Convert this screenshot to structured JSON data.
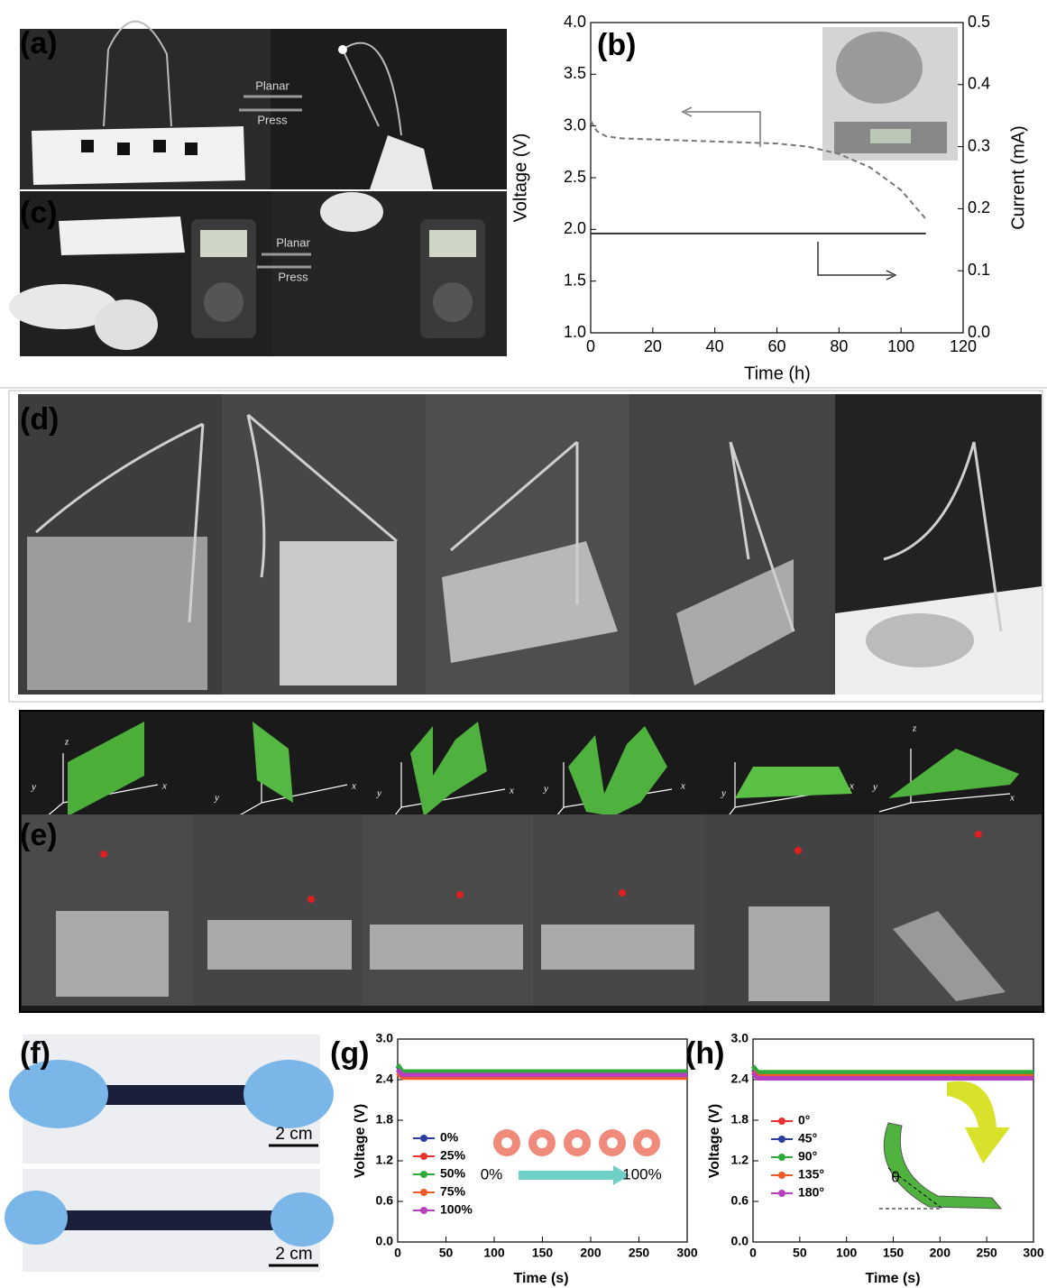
{
  "figure": {
    "labels": [
      "(a)",
      "(b)",
      "(c)",
      "(d)",
      "(e)",
      "(f)",
      "(g)",
      "(h)"
    ],
    "photo_texts": {
      "a_planar": "Planar",
      "a_press": "Press",
      "c_planar": "Planar",
      "c_press": "Press",
      "f_scale_top": "2 cm",
      "f_scale_bottom": "2 cm"
    },
    "axes_3d": [
      "z",
      "y",
      "x",
      "y",
      "x",
      "y",
      "x",
      "y",
      "x",
      "y",
      "x",
      "z",
      "y",
      "x"
    ]
  },
  "chart_data": [
    {
      "type": "line",
      "x_label": "Time (h)",
      "y_label": "Voltage (V)",
      "y2_label": "Current (mA)",
      "xlim": [
        0,
        120
      ],
      "xticks": [
        0,
        20,
        40,
        60,
        80,
        100,
        120
      ],
      "ylim": [
        1.0,
        4.0
      ],
      "yticks": [
        {
          "value": 1.0,
          "label": "1.0"
        },
        {
          "value": 1.5,
          "label": "1.5"
        },
        {
          "value": 2.0,
          "label": "2.0"
        },
        {
          "value": 2.5,
          "label": "2.5"
        },
        {
          "value": 3.0,
          "label": "3.0"
        },
        {
          "value": 3.5,
          "label": "3.5"
        },
        {
          "value": 4.0,
          "label": "4.0"
        }
      ],
      "y2lim": [
        0.0,
        0.5
      ],
      "y2ticks": [
        {
          "value": 0.0,
          "label": "0.0"
        },
        {
          "value": 0.1,
          "label": "0.1"
        },
        {
          "value": 0.2,
          "label": "0.2"
        },
        {
          "value": 0.3,
          "label": "0.3"
        },
        {
          "value": 0.4,
          "label": "0.4"
        },
        {
          "value": 0.5,
          "label": "0.5"
        }
      ],
      "x": [
        0,
        2,
        5,
        10,
        20,
        30,
        40,
        50,
        60,
        70,
        80,
        90,
        100,
        108
      ],
      "series": [
        {
          "color": "#777777",
          "line_style": "dashed",
          "values": [
            3.05,
            2.95,
            2.9,
            2.88,
            2.87,
            2.86,
            2.85,
            2.84,
            2.83,
            2.8,
            2.73,
            2.6,
            2.38,
            2.1
          ]
        },
        {
          "color": "#333333",
          "line_style": "solid",
          "axis": "y2",
          "values": [
            0.16,
            0.16,
            0.16,
            0.16,
            0.16,
            0.16,
            0.16,
            0.16,
            0.16,
            0.16,
            0.16,
            0.16,
            0.16,
            0.16
          ]
        }
      ]
    },
    {
      "type": "line",
      "x_label": "Time (s)",
      "y_label": "Voltage (V)",
      "legend": "left",
      "annotations": [
        "0%",
        "100%"
      ],
      "xlim": [
        0,
        300
      ],
      "xticks": [
        0,
        50,
        100,
        150,
        200,
        250,
        300
      ],
      "ylim": [
        0.0,
        3.0
      ],
      "yticks": [
        {
          "value": 0.0,
          "label": "0.0"
        },
        {
          "value": 0.6,
          "label": "0.6"
        },
        {
          "value": 1.2,
          "label": "1.2"
        },
        {
          "value": 1.8,
          "label": "1.8"
        },
        {
          "value": 2.4,
          "label": "2.4"
        },
        {
          "value": 3.0,
          "label": "3.0"
        }
      ],
      "x": [
        0,
        5,
        300
      ],
      "series": [
        {
          "name": "0%",
          "color": "#2b3f9e",
          "values": [
            2.6,
            2.5,
            2.5
          ]
        },
        {
          "name": "25%",
          "color": "#e8322f",
          "values": [
            2.55,
            2.45,
            2.45
          ]
        },
        {
          "name": "50%",
          "color": "#2eaa3a",
          "values": [
            2.62,
            2.52,
            2.52
          ]
        },
        {
          "name": "75%",
          "color": "#f05a28",
          "values": [
            2.5,
            2.43,
            2.43
          ]
        },
        {
          "name": "100%",
          "color": "#b63fc0",
          "values": [
            2.55,
            2.47,
            2.47
          ]
        }
      ]
    },
    {
      "type": "line",
      "x_label": "Time (s)",
      "y_label": "Voltage (V)",
      "legend": "left",
      "annotations": [
        "θ"
      ],
      "xlim": [
        0,
        300
      ],
      "xticks": [
        0,
        50,
        100,
        150,
        200,
        250,
        300
      ],
      "ylim": [
        0.0,
        3.0
      ],
      "yticks": [
        {
          "value": 0.0,
          "label": "0.0"
        },
        {
          "value": 0.6,
          "label": "0.6"
        },
        {
          "value": 1.2,
          "label": "1.2"
        },
        {
          "value": 1.8,
          "label": "1.8"
        },
        {
          "value": 2.4,
          "label": "2.4"
        },
        {
          "value": 3.0,
          "label": "3.0"
        }
      ],
      "x": [
        0,
        5,
        300
      ],
      "series": [
        {
          "name": "0°",
          "color": "#e8322f",
          "values": [
            2.6,
            2.5,
            2.5
          ]
        },
        {
          "name": "45°",
          "color": "#2b3f9e",
          "values": [
            2.55,
            2.47,
            2.47
          ]
        },
        {
          "name": "90°",
          "color": "#2eaa3a",
          "values": [
            2.6,
            2.51,
            2.51
          ]
        },
        {
          "name": "135°",
          "color": "#f05a28",
          "values": [
            2.52,
            2.45,
            2.45
          ]
        },
        {
          "name": "180°",
          "color": "#b63fc0",
          "values": [
            2.5,
            2.42,
            2.42
          ]
        }
      ]
    }
  ]
}
